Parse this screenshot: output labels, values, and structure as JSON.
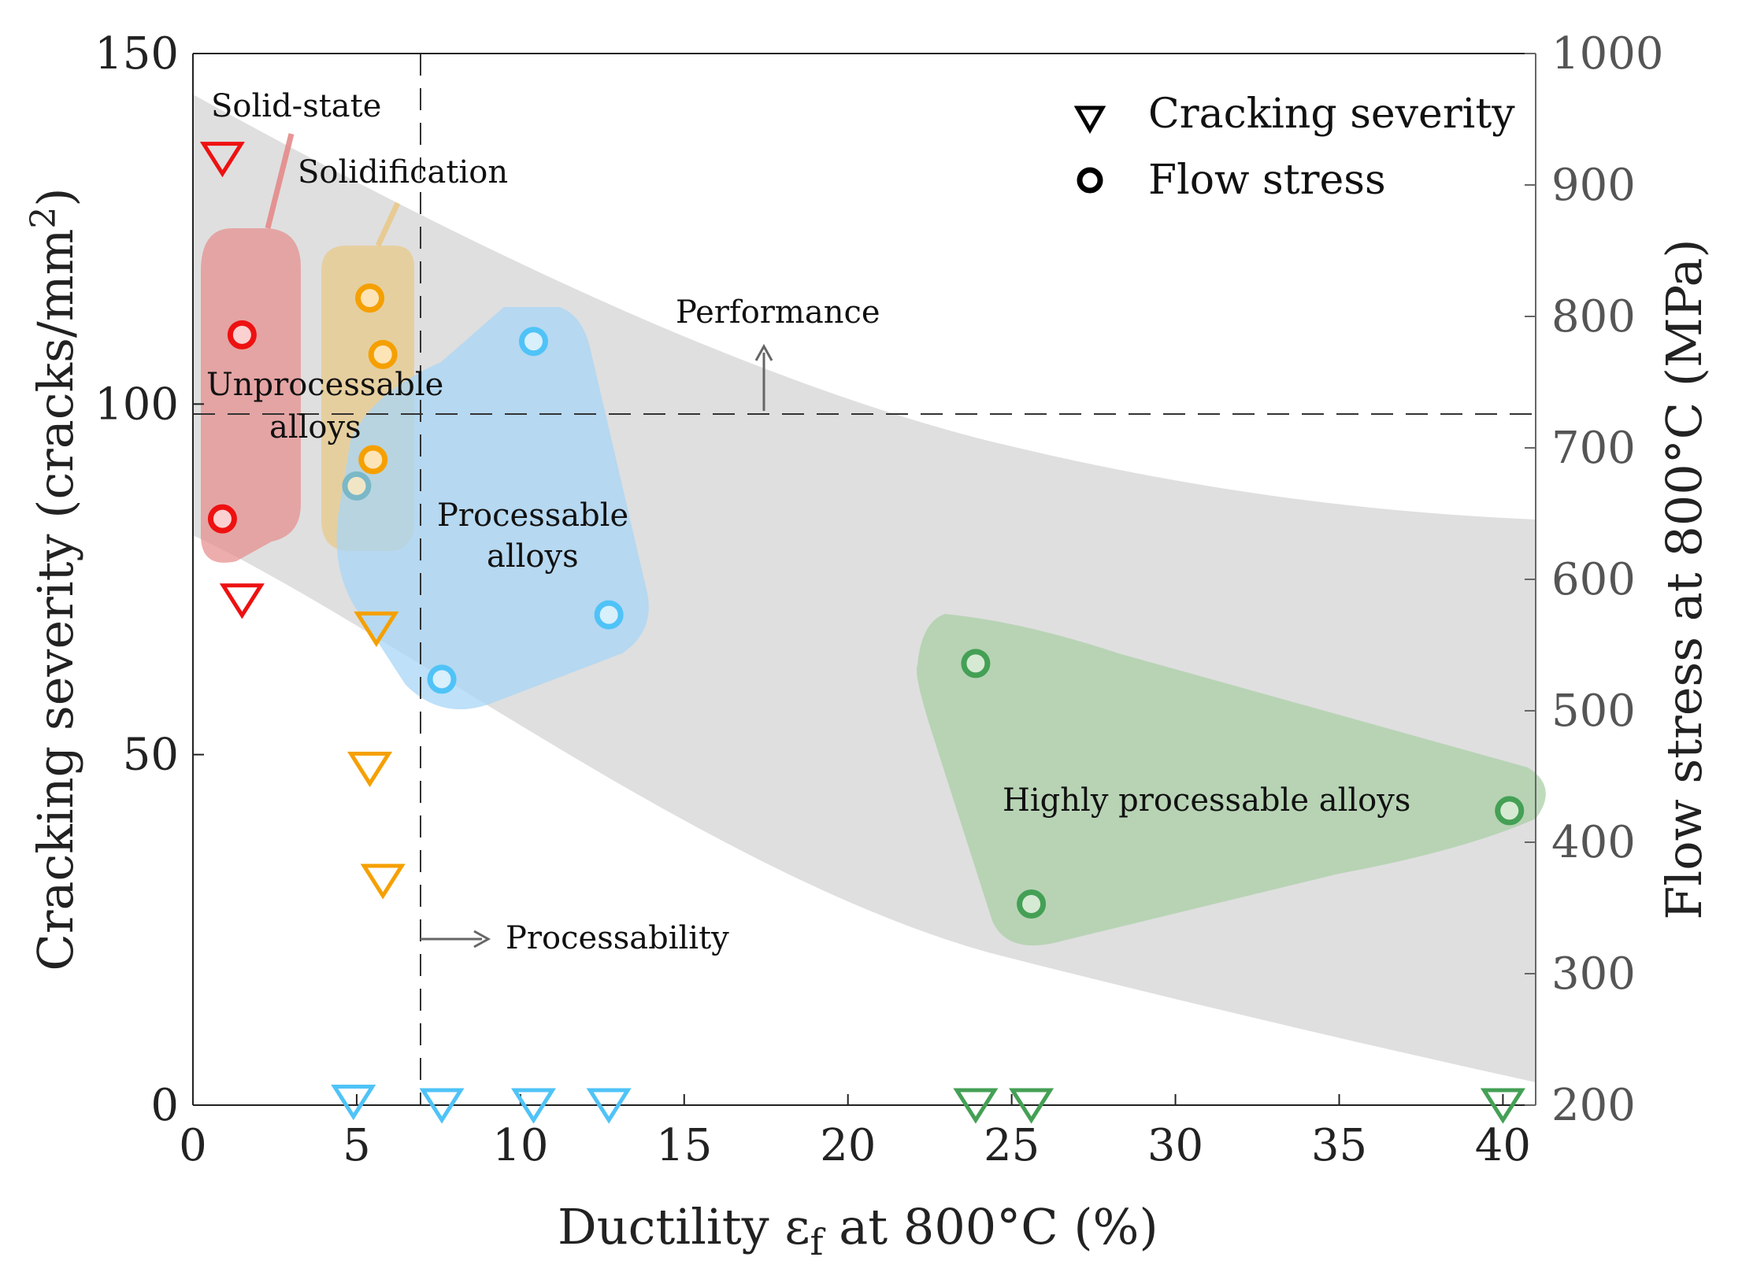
{
  "colors": {
    "solid_state": "#ee1111",
    "solidification": "#f5a000",
    "processable": "#4fc3f7",
    "highly_processable": "#44a055",
    "band": "#d9d9d9",
    "axis": "#222222"
  },
  "chart_data": {
    "type": "scatter",
    "xlabel_main": "Ductility ε",
    "xlabel_sub": "f",
    "xlabel_rest": " at 800°C (%)",
    "ylabel_left": "Cracking severity (cracks/mm",
    "ylabel_left_sup": "2",
    "ylabel_left_end": ")",
    "ylabel_right": "Flow stress at 800°C (MPa)",
    "xlim": [
      0,
      41
    ],
    "ylim_left": [
      0,
      150
    ],
    "ylim_right": [
      200,
      1000
    ],
    "x_ticks": [
      "0",
      "5",
      "10",
      "15",
      "20",
      "25",
      "30",
      "35",
      "40"
    ],
    "y_left_ticks": [
      "0",
      "50",
      "100",
      "150"
    ],
    "y_right_ticks": [
      "200",
      "300",
      "400",
      "500",
      "600",
      "700",
      "800",
      "900",
      "1000"
    ],
    "legend": [
      {
        "symbol": "triangle",
        "label": "Cracking severity"
      },
      {
        "symbol": "circle",
        "label": "Flow stress"
      }
    ],
    "thresholds": {
      "performance_flow_stress": 727,
      "processability_ductility": 7,
      "performance_label": "Performance",
      "processability_label": "Processability"
    },
    "annotations": {
      "solid_state": "Solid-state",
      "solidification": "Solidification",
      "unprocessable_1": "Unprocessable",
      "unprocessable_2": "alloys",
      "processable_1": "Processable",
      "processable_2": "alloys",
      "highly_processable": "Highly processable alloys"
    },
    "series": [
      {
        "name": "Cracking severity",
        "axis": "left",
        "marker": "triangle",
        "points": [
          {
            "x": 0.9,
            "y": 135,
            "group": "solid_state"
          },
          {
            "x": 1.5,
            "y": 72,
            "group": "solid_state"
          },
          {
            "x": 5.6,
            "y": 68,
            "group": "solidification"
          },
          {
            "x": 5.4,
            "y": 48,
            "group": "solidification"
          },
          {
            "x": 5.8,
            "y": 32,
            "group": "solidification"
          },
          {
            "x": 4.9,
            "y": 0.5,
            "group": "processable"
          },
          {
            "x": 7.6,
            "y": 0,
            "group": "processable"
          },
          {
            "x": 10.4,
            "y": 0,
            "group": "processable"
          },
          {
            "x": 12.7,
            "y": 0,
            "group": "processable"
          },
          {
            "x": 23.9,
            "y": 0,
            "group": "highly_processable"
          },
          {
            "x": 25.6,
            "y": 0,
            "group": "highly_processable"
          },
          {
            "x": 40.0,
            "y": 0,
            "group": "highly_processable"
          }
        ]
      },
      {
        "name": "Flow stress",
        "axis": "right",
        "marker": "circle",
        "points": [
          {
            "x": 1.5,
            "y": 786,
            "group": "solid_state"
          },
          {
            "x": 0.9,
            "y": 646,
            "group": "solid_state"
          },
          {
            "x": 5.4,
            "y": 814,
            "group": "solidification"
          },
          {
            "x": 5.8,
            "y": 771,
            "group": "solidification"
          },
          {
            "x": 5.5,
            "y": 691,
            "group": "solidification"
          },
          {
            "x": 5.0,
            "y": 671,
            "group": "processable_mixed"
          },
          {
            "x": 10.4,
            "y": 781,
            "group": "processable"
          },
          {
            "x": 12.7,
            "y": 573,
            "group": "processable"
          },
          {
            "x": 7.6,
            "y": 524,
            "group": "processable"
          },
          {
            "x": 23.9,
            "y": 536,
            "group": "highly_processable"
          },
          {
            "x": 25.6,
            "y": 353,
            "group": "highly_processable"
          },
          {
            "x": 40.2,
            "y": 424,
            "group": "highly_processable"
          }
        ]
      }
    ]
  }
}
